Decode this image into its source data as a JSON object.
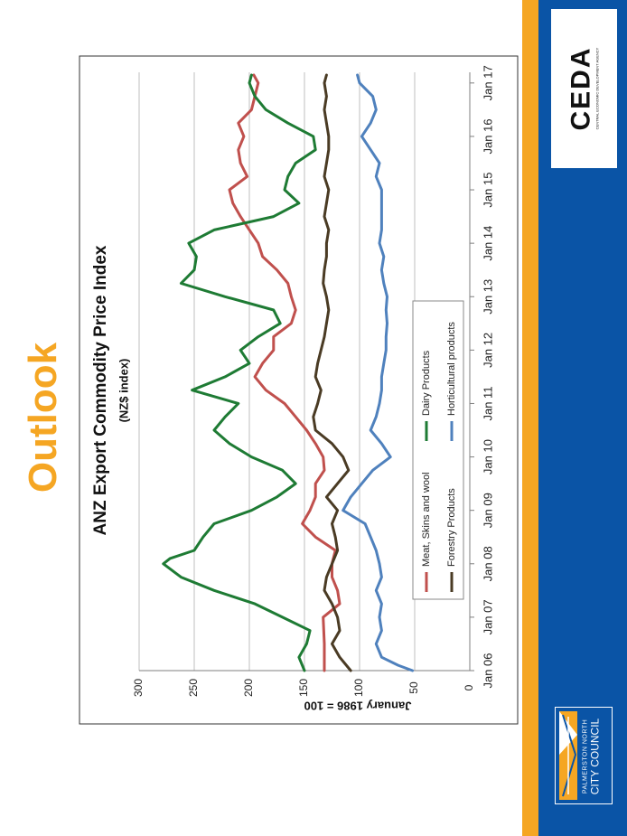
{
  "slide": {
    "title": "Outlook",
    "accent_orange": "#f5a623",
    "brand_blue": "#0a54a6"
  },
  "logos": {
    "ceda_text": "CEDA",
    "ceda_subtext": "CENTRAL ECONOMIC DEVELOPMENT AGENCY",
    "council_line1": "PALMERSTON NORTH",
    "council_line2": "CITY COUNCIL"
  },
  "chart_data": {
    "type": "line",
    "title": "ANZ Export Commodity Price Index",
    "subtitle": "(NZ$ index)",
    "xlabel": "",
    "ylabel": "January 1986 = 100",
    "ylim": [
      0,
      300
    ],
    "yticks": [
      0,
      50,
      100,
      150,
      200,
      250,
      300
    ],
    "x_start": "Jan 06",
    "x_end": "Jan 17",
    "xticks": [
      "Jan 06",
      "Jan 07",
      "Jan 08",
      "Jan 09",
      "Jan 10",
      "Jan 11",
      "Jan 12",
      "Jan 13",
      "Jan 14",
      "Jan 15",
      "Jan 16",
      "Jan 17"
    ],
    "grid": true,
    "legend_position": "bottom-center",
    "series": [
      {
        "name": "Meat, Skins and wool",
        "color": "#c0504d",
        "x": [
          2006.0,
          2006.5,
          2007.0,
          2007.25,
          2007.5,
          2007.75,
          2008.0,
          2008.25,
          2008.5,
          2008.75,
          2009.0,
          2009.25,
          2009.5,
          2009.75,
          2010.0,
          2010.25,
          2010.5,
          2010.75,
          2011.0,
          2011.25,
          2011.5,
          2011.75,
          2012.0,
          2012.25,
          2012.5,
          2012.75,
          2013.0,
          2013.25,
          2013.5,
          2013.75,
          2014.0,
          2014.25,
          2014.5,
          2014.75,
          2015.0,
          2015.25,
          2015.5,
          2015.75,
          2016.0,
          2016.25,
          2016.5,
          2016.75,
          2017.0,
          2017.15
        ],
        "values": [
          132,
          132,
          133,
          118,
          120,
          125,
          125,
          122,
          140,
          152,
          145,
          140,
          140,
          132,
          133,
          140,
          148,
          158,
          168,
          185,
          195,
          188,
          178,
          178,
          162,
          158,
          162,
          165,
          175,
          188,
          192,
          200,
          208,
          215,
          218,
          202,
          208,
          210,
          205,
          210,
          198,
          195,
          192,
          196
        ]
      },
      {
        "name": "Dairy Products",
        "color": "#1e7b34",
        "x": [
          2006.0,
          2006.25,
          2006.5,
          2006.75,
          2007.0,
          2007.25,
          2007.5,
          2007.75,
          2008.0,
          2008.1,
          2008.25,
          2008.5,
          2008.75,
          2009.0,
          2009.25,
          2009.5,
          2009.75,
          2010.0,
          2010.25,
          2010.5,
          2010.75,
          2011.0,
          2011.25,
          2011.5,
          2011.75,
          2012.0,
          2012.25,
          2012.5,
          2012.75,
          2013.0,
          2013.25,
          2013.5,
          2013.75,
          2014.0,
          2014.25,
          2014.5,
          2014.75,
          2015.0,
          2015.25,
          2015.5,
          2015.75,
          2016.0,
          2016.25,
          2016.5,
          2016.75,
          2017.0,
          2017.15
        ],
        "values": [
          150,
          155,
          148,
          145,
          170,
          195,
          232,
          262,
          278,
          272,
          250,
          242,
          232,
          198,
          175,
          158,
          170,
          198,
          218,
          232,
          222,
          210,
          252,
          222,
          200,
          208,
          192,
          172,
          178,
          222,
          262,
          250,
          248,
          255,
          232,
          178,
          155,
          168,
          165,
          158,
          140,
          142,
          165,
          185,
          195,
          200,
          198
        ]
      },
      {
        "name": "Forestry Products",
        "color": "#4a3b24",
        "x": [
          2006.0,
          2006.25,
          2006.5,
          2006.75,
          2007.0,
          2007.25,
          2007.5,
          2007.75,
          2008.0,
          2008.25,
          2008.5,
          2008.75,
          2009.0,
          2009.25,
          2009.5,
          2009.75,
          2010.0,
          2010.25,
          2010.5,
          2010.75,
          2011.0,
          2011.25,
          2011.5,
          2011.75,
          2012.0,
          2012.25,
          2012.5,
          2012.75,
          2013.0,
          2013.25,
          2013.5,
          2013.75,
          2014.0,
          2014.25,
          2014.5,
          2014.75,
          2015.0,
          2015.25,
          2015.5,
          2015.75,
          2016.0,
          2016.25,
          2016.5,
          2016.75,
          2017.0,
          2017.15
        ],
        "values": [
          108,
          118,
          125,
          118,
          120,
          125,
          132,
          130,
          125,
          120,
          122,
          125,
          120,
          130,
          120,
          110,
          115,
          125,
          140,
          142,
          138,
          135,
          140,
          138,
          135,
          132,
          130,
          128,
          130,
          133,
          132,
          130,
          130,
          128,
          132,
          130,
          128,
          132,
          130,
          128,
          128,
          130,
          132,
          130,
          132,
          130
        ]
      },
      {
        "name": "Horticultural products",
        "color": "#4f81bd",
        "x": [
          2006.0,
          2006.1,
          2006.25,
          2006.5,
          2006.75,
          2007.0,
          2007.25,
          2007.5,
          2007.75,
          2008.0,
          2008.25,
          2008.5,
          2008.75,
          2009.0,
          2009.25,
          2009.5,
          2009.75,
          2010.0,
          2010.25,
          2010.5,
          2010.75,
          2011.0,
          2011.25,
          2011.5,
          2011.75,
          2012.0,
          2012.25,
          2012.5,
          2012.75,
          2013.0,
          2013.25,
          2013.5,
          2013.75,
          2014.0,
          2014.25,
          2014.5,
          2014.75,
          2015.0,
          2015.25,
          2015.5,
          2015.75,
          2016.0,
          2016.25,
          2016.5,
          2016.75,
          2017.0,
          2017.15
        ],
        "values": [
          52,
          65,
          80,
          85,
          80,
          82,
          80,
          85,
          80,
          82,
          85,
          90,
          95,
          115,
          108,
          98,
          88,
          72,
          80,
          90,
          85,
          82,
          80,
          80,
          78,
          76,
          76,
          75,
          76,
          75,
          78,
          80,
          78,
          82,
          80,
          80,
          80,
          80,
          85,
          82,
          90,
          98,
          90,
          85,
          88,
          100,
          102
        ]
      }
    ]
  }
}
